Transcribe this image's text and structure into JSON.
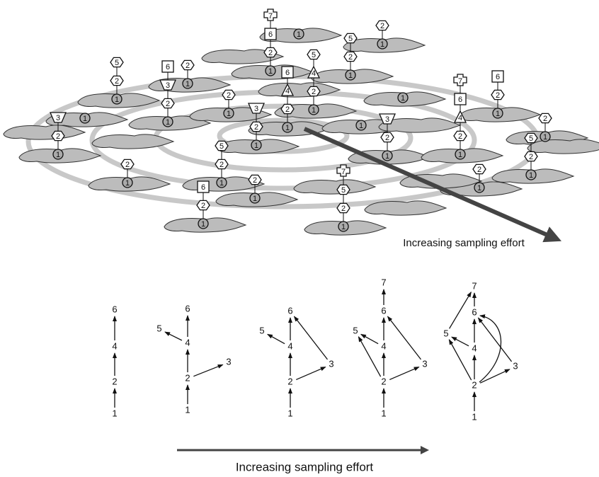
{
  "top_panel": {
    "stacks": [
      [
        1,
        2,
        5
      ],
      [
        1,
        2,
        3,
        6
      ],
      [
        1,
        2
      ],
      [
        1,
        2,
        6,
        7
      ],
      [
        1
      ],
      [
        1,
        2,
        5
      ],
      [
        1,
        2
      ],
      [
        1,
        2,
        4,
        5
      ],
      [
        1,
        2,
        4,
        6
      ],
      [
        1,
        2
      ],
      [
        1
      ],
      [
        1,
        2,
        3
      ],
      [
        1,
        2
      ],
      [
        1,
        2,
        3
      ],
      [
        1,
        2,
        5
      ],
      [
        1,
        2,
        6
      ],
      [
        1,
        2
      ],
      [
        1,
        2,
        5,
        7
      ],
      [
        1
      ],
      [
        1,
        2,
        3
      ],
      [
        1
      ],
      [
        1,
        2,
        4,
        6,
        7
      ],
      [
        1,
        2,
        6
      ],
      [
        1,
        2
      ],
      [
        1,
        2,
        5
      ],
      [
        1,
        2
      ]
    ],
    "arrow_label": "Increasing sampling effort"
  },
  "bottom_panel": {
    "graphs": [
      {
        "nodes": [
          1,
          2,
          4,
          6
        ]
      },
      {
        "nodes": [
          1,
          2,
          3,
          4,
          5,
          6
        ]
      },
      {
        "nodes": [
          1,
          2,
          3,
          4,
          5,
          6
        ]
      },
      {
        "nodes": [
          1,
          2,
          3,
          4,
          5,
          6,
          7
        ]
      },
      {
        "nodes": [
          1,
          2,
          3,
          4,
          5,
          6,
          7
        ]
      }
    ],
    "arrow_label": "Increasing sampling effort"
  }
}
